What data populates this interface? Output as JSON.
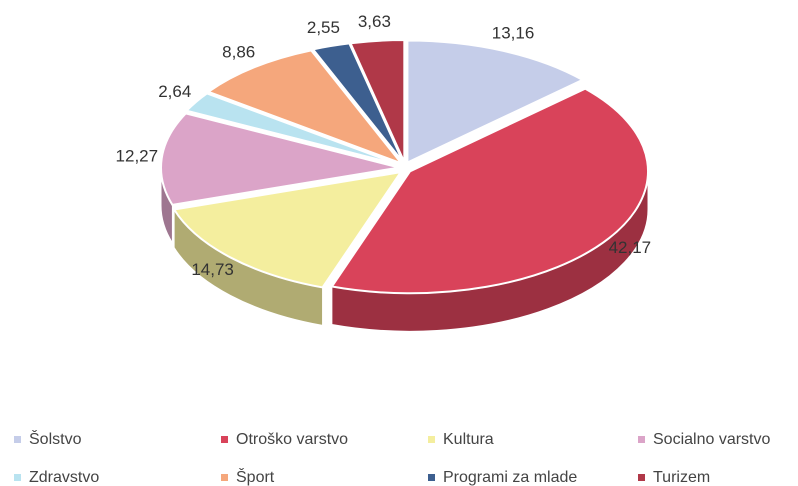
{
  "chart_data": {
    "type": "pie",
    "categories": [
      "Šolstvo",
      "Otroško varstvo",
      "Kultura",
      "Socialno varstvo",
      "Zdravstvo",
      "Šport",
      "Programi za mlade",
      "Turizem"
    ],
    "values": [
      13.16,
      42.17,
      14.73,
      12.27,
      2.64,
      8.86,
      2.55,
      3.63
    ],
    "value_labels": [
      "13,16",
      "42,17",
      "14,73",
      "12,27",
      "2,64",
      "8,86",
      "2,55",
      "3,63"
    ],
    "colors": [
      "#c5cde9",
      "#d9435a",
      "#f4ee9e",
      "#dba4c8",
      "#b9e3f0",
      "#f5a77c",
      "#3d5f8f",
      "#b03848"
    ],
    "legend": "bottom"
  }
}
